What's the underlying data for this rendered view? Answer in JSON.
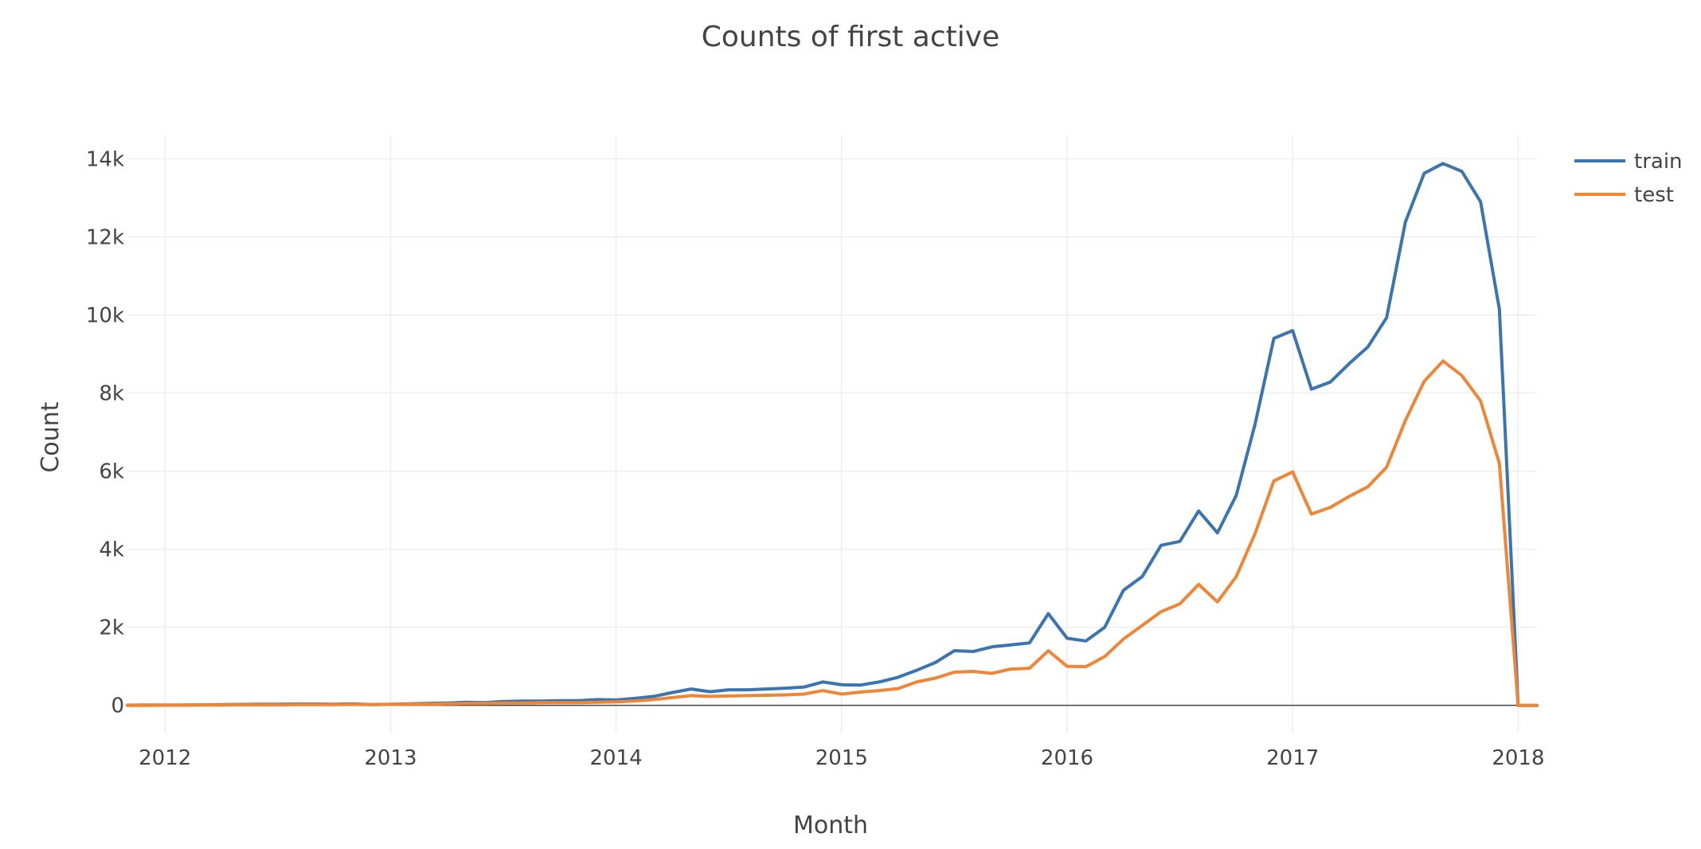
{
  "chart_data": {
    "type": "line",
    "title": "Counts of first active",
    "xlabel": "Month",
    "ylabel": "Count",
    "xlim": [
      "2011-11",
      "2018-02"
    ],
    "ylim": [
      -700,
      14600
    ],
    "x_ticks": [
      "2012",
      "2013",
      "2014",
      "2015",
      "2016",
      "2017",
      "2018"
    ],
    "y_ticks": [
      0,
      2000,
      4000,
      6000,
      8000,
      10000,
      12000,
      14000
    ],
    "y_tick_labels": [
      "0",
      "2k",
      "4k",
      "6k",
      "8k",
      "10k",
      "12k",
      "14k"
    ],
    "grid": true,
    "legend_position": "top-right",
    "x": [
      "2011-11",
      "2011-12",
      "2012-01",
      "2012-02",
      "2012-03",
      "2012-04",
      "2012-05",
      "2012-06",
      "2012-07",
      "2012-08",
      "2012-09",
      "2012-10",
      "2012-11",
      "2012-12",
      "2013-01",
      "2013-02",
      "2013-03",
      "2013-04",
      "2013-05",
      "2013-06",
      "2013-07",
      "2013-08",
      "2013-09",
      "2013-10",
      "2013-11",
      "2013-12",
      "2014-01",
      "2014-02",
      "2014-03",
      "2014-04",
      "2014-05",
      "2014-06",
      "2014-07",
      "2014-08",
      "2014-09",
      "2014-10",
      "2014-11",
      "2014-12",
      "2015-01",
      "2015-02",
      "2015-03",
      "2015-04",
      "2015-05",
      "2015-06",
      "2015-07",
      "2015-08",
      "2015-09",
      "2015-10",
      "2015-11",
      "2015-12",
      "2016-01",
      "2016-02",
      "2016-03",
      "2016-04",
      "2016-05",
      "2016-06",
      "2016-07",
      "2016-08",
      "2016-09",
      "2016-10",
      "2016-11",
      "2016-12",
      "2017-01",
      "2017-02",
      "2017-03",
      "2017-04",
      "2017-05",
      "2017-06",
      "2017-07",
      "2017-08",
      "2017-09",
      "2017-10",
      "2017-11",
      "2017-12",
      "2018-01",
      "2018-02"
    ],
    "series": [
      {
        "name": "train",
        "color": "#3a75af",
        "values": [
          5,
          10,
          10,
          10,
          15,
          20,
          25,
          30,
          30,
          35,
          35,
          30,
          40,
          20,
          30,
          40,
          50,
          60,
          80,
          70,
          100,
          110,
          110,
          120,
          120,
          150,
          140,
          180,
          230,
          330,
          420,
          350,
          400,
          400,
          420,
          440,
          470,
          600,
          530,
          520,
          600,
          720,
          900,
          1100,
          1400,
          1380,
          1500,
          1550,
          1600,
          2350,
          1720,
          1650,
          2000,
          2950,
          3300,
          4100,
          4200,
          4980,
          4420,
          5380,
          7200,
          9400,
          9600,
          8100,
          8280,
          8750,
          9180,
          9930,
          12380,
          13630,
          13880,
          13680,
          12900,
          10150,
          0,
          0
        ]
      },
      {
        "name": "test",
        "color": "#ef8636",
        "values": [
          0,
          0,
          5,
          5,
          10,
          10,
          15,
          15,
          15,
          20,
          20,
          20,
          25,
          20,
          25,
          30,
          30,
          40,
          50,
          50,
          60,
          60,
          70,
          70,
          70,
          80,
          90,
          110,
          150,
          200,
          250,
          230,
          240,
          250,
          260,
          270,
          290,
          380,
          290,
          340,
          380,
          430,
          600,
          700,
          850,
          870,
          820,
          930,
          950,
          1400,
          1000,
          990,
          1250,
          1700,
          2050,
          2400,
          2600,
          3100,
          2650,
          3300,
          4400,
          5750,
          5980,
          4900,
          5070,
          5350,
          5600,
          6100,
          7300,
          8300,
          8820,
          8450,
          7800,
          6200,
          0,
          0
        ]
      }
    ]
  }
}
